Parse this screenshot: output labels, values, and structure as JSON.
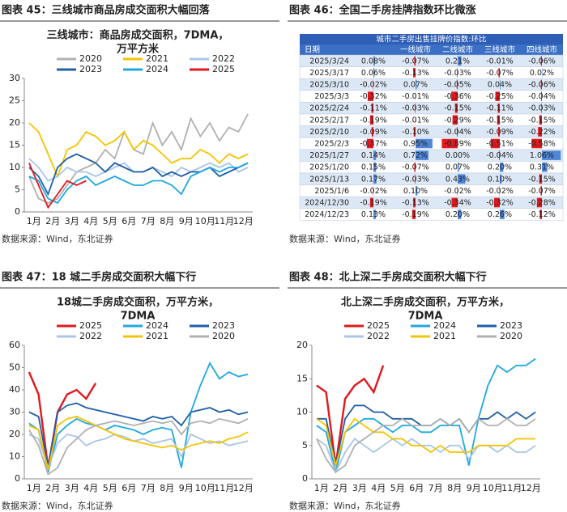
{
  "chart_data": [
    {
      "type": "line",
      "figure_label": "图表 45：三线城市商品房成交面积大幅回落",
      "source": "数据来源：Wind，东北证券",
      "title": [
        "三线城市：商品房成交面积，7DMA，",
        "万平方米"
      ],
      "categories": [
        "1月",
        null,
        "2月",
        null,
        "3月",
        null,
        "4月",
        null,
        "5月",
        null,
        "6月",
        null,
        "7月",
        null,
        "8月",
        null,
        "9月",
        null,
        "10月",
        null,
        "11月",
        null,
        "12月",
        null
      ],
      "ylim": [
        0,
        30
      ],
      "yticks": [
        0,
        5,
        10,
        15,
        20,
        25,
        30
      ],
      "series": [
        {
          "name": "2020",
          "color": "#b0b0b0",
          "values": [
            8,
            3,
            2,
            3,
            6,
            9,
            10,
            11,
            14,
            12,
            18,
            14,
            13,
            20,
            15,
            18,
            14,
            21,
            17,
            20,
            16,
            19,
            18,
            22
          ]
        },
        {
          "name": "2021",
          "color": "#f5c400",
          "values": [
            20,
            18,
            13,
            8,
            14,
            15,
            18,
            17,
            15,
            16,
            18,
            14,
            16,
            15,
            13,
            11,
            12,
            12,
            14,
            13,
            11,
            13,
            12,
            13
          ]
        },
        {
          "name": "2022",
          "color": "#a9c6e8",
          "values": [
            12,
            10,
            7,
            8,
            10,
            9,
            9,
            8,
            9,
            10,
            11,
            9,
            9,
            10,
            9,
            8,
            10,
            9,
            10,
            11,
            10,
            11,
            9,
            10
          ]
        },
        {
          "name": "2023",
          "color": "#1f5fa8",
          "values": [
            10,
            8,
            4,
            10,
            12,
            13,
            12,
            11,
            9,
            11,
            10,
            9,
            9,
            10,
            8,
            9,
            8,
            9,
            9,
            10,
            8,
            9,
            10,
            11
          ]
        },
        {
          "name": "2024",
          "color": "#1fa8e0",
          "values": [
            8,
            7,
            3,
            2,
            5,
            7,
            8,
            6,
            7,
            8,
            7,
            6,
            6,
            7,
            7,
            6,
            4,
            8,
            9,
            10,
            9,
            10,
            10,
            11
          ]
        },
        {
          "name": "2025",
          "color": "#e0191e",
          "values": [
            11,
            6,
            1,
            4,
            7,
            6,
            7,
            null,
            null,
            null,
            null,
            null,
            null,
            null,
            null,
            null,
            null,
            null,
            null,
            null,
            null,
            null,
            null,
            null
          ]
        }
      ]
    },
    {
      "type": "table",
      "figure_label": "图表 46：全国二手房挂牌指数环比微涨",
      "source": "数据来源：Wind，东北证券",
      "title": "城市二手房出售挂牌价指数:环比",
      "columns": [
        "日期",
        null,
        "一线城市",
        "二线城市",
        "三线城市",
        "四线城市"
      ],
      "rows": [
        [
          "2025/3/24",
          "0.08%",
          "-0.07%",
          "0.21%",
          "-0.01%",
          "-0.06%"
        ],
        [
          "2025/3/17",
          "0.06%",
          "-0.13%",
          "-0.03%",
          "-0.07%",
          "0.02%"
        ],
        [
          "2025/3/10",
          "-0.02%",
          "0.07%",
          "-0.05%",
          "0.04%",
          "-0.06%"
        ],
        [
          "2025/3/3",
          "-0.32%",
          "-0.01%",
          "-0.36%",
          "-0.25%",
          "-0.04%"
        ],
        [
          "2025/2/24",
          "-0.11%",
          "-0.03%",
          "-0.15%",
          "-0.11%",
          "-0.03%"
        ],
        [
          "2025/2/17",
          "-0.19%",
          "-0.01%",
          "-0.29%",
          "-0.15%",
          "-0.15%"
        ],
        [
          "2025/2/10",
          "-0.09%",
          "-0.10%",
          "-0.04%",
          "-0.09%",
          "-0.22%"
        ],
        [
          "2025/2/3",
          "-0.37%",
          "0.95%",
          "-0.89%",
          "-0.51%",
          "-0.58%"
        ],
        [
          "2025/1/27",
          "0.14%",
          "0.72%",
          "0.00%",
          "-0.04%",
          "1.06%"
        ],
        [
          "2025/1/20",
          "0.15%",
          "-0.07%",
          "0.07%",
          "0.20%",
          "0.31%"
        ],
        [
          "2025/1/13",
          "0.17%",
          "-0.03%",
          "0.43%",
          "0.10%",
          "-0.15%"
        ],
        [
          "2025/1/6",
          "-0.02%",
          "0.10%",
          "-0.02%",
          "-0.02%",
          "-0.07%"
        ],
        [
          "2024/12/30",
          "-0.19%",
          "-0.13%",
          "-0.34%",
          "-0.32%",
          "-0.28%"
        ],
        [
          "2024/12/23",
          "0.13%",
          "-0.19%",
          "0.20%",
          "0.26%",
          "-0.12%"
        ]
      ]
    },
    {
      "type": "line",
      "figure_label": "图表 47：18 城二手房成交面积大幅下行",
      "source": "数据来源：Wind，东北证券",
      "title": [
        "18城二手房成交面积，万平方米，",
        "7DMA"
      ],
      "categories": [
        "1月",
        null,
        "2月",
        null,
        "3月",
        null,
        "4月",
        null,
        "5月",
        null,
        "6月",
        null,
        "7月",
        null,
        "8月",
        null,
        "9月",
        null,
        "10月",
        null,
        "11月",
        null,
        "12月",
        null
      ],
      "ylim": [
        0,
        60
      ],
      "yticks": [
        0,
        10,
        20,
        30,
        40,
        50,
        60
      ],
      "series": [
        {
          "name": "2025",
          "color": "#e0191e",
          "values": [
            48,
            38,
            5,
            30,
            38,
            40,
            36,
            43,
            null,
            null,
            null,
            null,
            null,
            null,
            null,
            null,
            null,
            null,
            null,
            null,
            null,
            null,
            null,
            null
          ]
        },
        {
          "name": "2024",
          "color": "#1fa8e0",
          "values": [
            25,
            22,
            3,
            20,
            24,
            27,
            25,
            24,
            22,
            24,
            23,
            22,
            20,
            22,
            23,
            22,
            5,
            30,
            42,
            52,
            45,
            48,
            46,
            47
          ]
        },
        {
          "name": "2023",
          "color": "#1f5fa8",
          "values": [
            30,
            28,
            5,
            30,
            33,
            34,
            32,
            31,
            30,
            29,
            28,
            27,
            26,
            28,
            27,
            28,
            24,
            30,
            31,
            32,
            30,
            31,
            29,
            30
          ]
        },
        {
          "name": "2022",
          "color": "#a9c6e8",
          "values": [
            20,
            18,
            5,
            16,
            20,
            19,
            15,
            17,
            18,
            20,
            19,
            17,
            18,
            16,
            17,
            18,
            10,
            20,
            18,
            16,
            17,
            15,
            16,
            17
          ]
        },
        {
          "name": "2021",
          "color": "#f5c400",
          "values": [
            24,
            22,
            4,
            24,
            27,
            28,
            26,
            24,
            22,
            20,
            18,
            17,
            16,
            15,
            14,
            15,
            13,
            15,
            16,
            17,
            16,
            18,
            19,
            21
          ]
        },
        {
          "name": "2020",
          "color": "#b0b0b0",
          "values": [
            22,
            15,
            2,
            5,
            14,
            18,
            22,
            24,
            25,
            26,
            25,
            24,
            25,
            26,
            25,
            26,
            20,
            25,
            26,
            25,
            27,
            26,
            25,
            27
          ]
        }
      ]
    },
    {
      "type": "line",
      "figure_label": "图表 48：北上深二手房成交面积大幅下行",
      "source": "数据来源：Wind，东北证券",
      "title": [
        "北上深二手房成交面积，万平方米，",
        "7DMA"
      ],
      "categories": [
        "1月",
        null,
        "2月",
        null,
        "3月",
        null,
        "4月",
        null,
        "5月",
        null,
        "6月",
        null,
        "7月",
        null,
        "8月",
        null,
        "9月",
        null,
        "10月",
        null,
        "11月",
        null,
        "12月",
        null
      ],
      "ylim": [
        0,
        20
      ],
      "yticks": [
        0,
        5,
        10,
        15,
        20
      ],
      "series": [
        {
          "name": "2025",
          "color": "#e0191e",
          "values": [
            14,
            13,
            2,
            12,
            14,
            15,
            13,
            17,
            null,
            null,
            null,
            null,
            null,
            null,
            null,
            null,
            null,
            null,
            null,
            null,
            null,
            null,
            null,
            null
          ]
        },
        {
          "name": "2024",
          "color": "#1fa8e0",
          "values": [
            8,
            7,
            1,
            7,
            8,
            9,
            9,
            8,
            7,
            8,
            8,
            7,
            7,
            8,
            8,
            8,
            2,
            9,
            14,
            17,
            16,
            17,
            17,
            18
          ]
        },
        {
          "name": "2023",
          "color": "#1f5fa8",
          "values": [
            9,
            9,
            2,
            9,
            11,
            11,
            10,
            10,
            9,
            9,
            9,
            8,
            8,
            9,
            8,
            9,
            7,
            9,
            9,
            10,
            9,
            10,
            9,
            10
          ]
        },
        {
          "name": "2022",
          "color": "#a9c6e8",
          "values": [
            6,
            5,
            1,
            4,
            6,
            5,
            4,
            5,
            6,
            5,
            6,
            5,
            5,
            4,
            5,
            5,
            3,
            5,
            5,
            4,
            5,
            4,
            4,
            5
          ]
        },
        {
          "name": "2021",
          "color": "#f5c400",
          "values": [
            9,
            8,
            2,
            7,
            9,
            8,
            7,
            7,
            6,
            6,
            5,
            5,
            4,
            5,
            4,
            4,
            4,
            5,
            5,
            5,
            5,
            6,
            6,
            6
          ]
        },
        {
          "name": "2020",
          "color": "#b0b0b0",
          "values": [
            6,
            3,
            1,
            2,
            5,
            6,
            7,
            8,
            8,
            9,
            8,
            8,
            8,
            9,
            8,
            9,
            7,
            9,
            8,
            8,
            9,
            8,
            8,
            9
          ]
        }
      ]
    }
  ]
}
